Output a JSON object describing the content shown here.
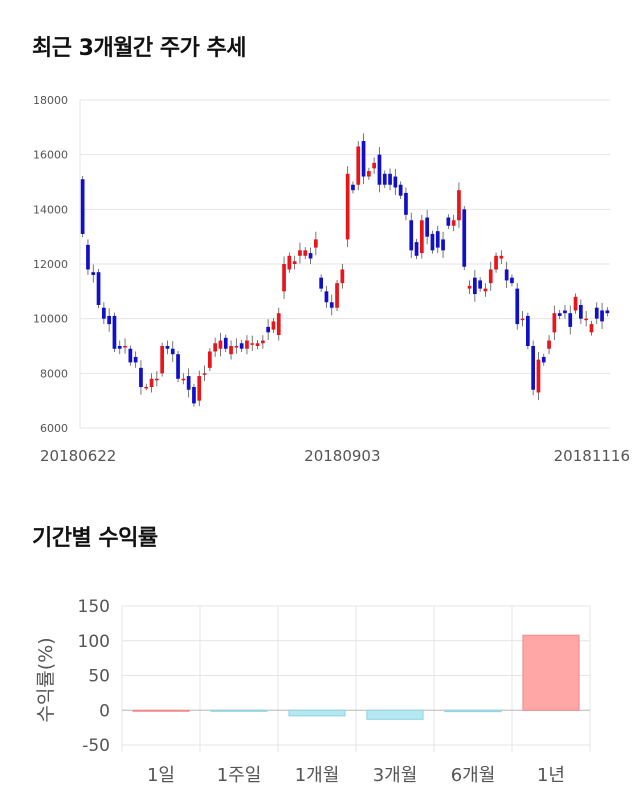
{
  "sections": {
    "price_title": "최근 3개월간 주가 추세",
    "returns_title": "기간별 수익률"
  },
  "chart_data": [
    {
      "type": "candlestick",
      "title": "최근 3개월간 주가 추세",
      "ylim": [
        6000,
        18000
      ],
      "y_ticks": [
        "18000",
        "16000",
        "14000",
        "12000",
        "10000",
        "8000",
        "6000"
      ],
      "x_tick_labels": [
        "20180622",
        "20180903",
        "20181116"
      ],
      "grid": true,
      "colors": {
        "up": "#e8151b",
        "down": "#1010c8",
        "wick": "#555555"
      },
      "candles": [
        [
          15100,
          13100
        ],
        [
          12700,
          11800
        ],
        [
          11700,
          11600
        ],
        [
          11700,
          10500
        ],
        [
          10400,
          10000
        ],
        [
          10100,
          9800
        ],
        [
          10100,
          8900
        ],
        [
          9000,
          8900
        ],
        [
          9000,
          9000
        ],
        [
          8900,
          8400
        ],
        [
          8600,
          8400
        ],
        [
          8200,
          7500
        ],
        [
          7500,
          7500
        ],
        [
          7500,
          7800
        ],
        [
          7800,
          7800
        ],
        [
          8000,
          9000
        ],
        [
          9000,
          8900
        ],
        [
          8900,
          8700
        ],
        [
          8700,
          7800
        ],
        [
          7800,
          7800
        ],
        [
          7900,
          7400
        ],
        [
          7500,
          6900
        ],
        [
          7000,
          7900
        ],
        [
          8000,
          8000
        ],
        [
          8200,
          8800
        ],
        [
          8800,
          9100
        ],
        [
          8900,
          9200
        ],
        [
          9300,
          8900
        ],
        [
          8700,
          9000
        ],
        [
          9000,
          9000
        ],
        [
          9100,
          8900
        ],
        [
          8900,
          9200
        ],
        [
          9100,
          9100
        ],
        [
          9000,
          9100
        ],
        [
          9100,
          9200
        ],
        [
          9700,
          9500
        ],
        [
          9600,
          9900
        ],
        [
          9400,
          10200
        ],
        [
          11000,
          12000
        ],
        [
          11800,
          12300
        ],
        [
          12000,
          12100
        ],
        [
          12300,
          12500
        ],
        [
          12300,
          12500
        ],
        [
          12400,
          12200
        ],
        [
          12600,
          12900
        ],
        [
          11500,
          11100
        ],
        [
          11000,
          10600
        ],
        [
          10600,
          10400
        ],
        [
          10400,
          11300
        ],
        [
          11300,
          11800
        ],
        [
          12900,
          15300
        ],
        [
          14900,
          14700
        ],
        [
          14900,
          16300
        ],
        [
          16500,
          15200
        ],
        [
          15200,
          15400
        ],
        [
          15500,
          15700
        ],
        [
          16000,
          14900
        ],
        [
          15300,
          14900
        ],
        [
          15300,
          14900
        ],
        [
          15200,
          14800
        ],
        [
          14900,
          14500
        ],
        [
          14600,
          13800
        ],
        [
          13600,
          12500
        ],
        [
          12800,
          12300
        ],
        [
          12400,
          13600
        ],
        [
          13700,
          13000
        ],
        [
          13100,
          12500
        ],
        [
          13200,
          12600
        ],
        [
          12900,
          12500
        ],
        [
          13700,
          13400
        ],
        [
          13400,
          13600
        ],
        [
          13600,
          14700
        ],
        [
          14000,
          11900
        ],
        [
          11100,
          11200
        ],
        [
          11500,
          10900
        ],
        [
          11400,
          11100
        ],
        [
          11000,
          11100
        ],
        [
          11300,
          11800
        ],
        [
          11800,
          12300
        ],
        [
          12200,
          12300
        ],
        [
          11800,
          11400
        ],
        [
          11500,
          11300
        ],
        [
          11100,
          9800
        ],
        [
          10000,
          10000
        ],
        [
          10100,
          9000
        ],
        [
          9000,
          7400
        ],
        [
          7300,
          8500
        ],
        [
          8600,
          8400
        ],
        [
          8900,
          9200
        ],
        [
          9500,
          10200
        ],
        [
          10200,
          10100
        ],
        [
          10300,
          10200
        ],
        [
          10200,
          9700
        ],
        [
          10300,
          10800
        ],
        [
          10500,
          10000
        ],
        [
          10000,
          10000
        ],
        [
          9500,
          9800
        ],
        [
          10400,
          10000
        ],
        [
          10300,
          9900
        ],
        [
          10300,
          10200
        ]
      ]
    },
    {
      "type": "bar",
      "categories": [
        "1일",
        "1주일",
        "1개월",
        "3개월",
        "6개월",
        "1년"
      ],
      "values": [
        0,
        -0.5,
        -8,
        -13,
        -2,
        108
      ],
      "ylabel": "수익률(%)",
      "ylim": [
        -60,
        150
      ],
      "y_ticks": [
        "150",
        "100",
        "50",
        "0",
        "-50"
      ],
      "grid": true,
      "colors": {
        "positive": "#ffa6a6",
        "negative": "#b4e8f2"
      }
    }
  ]
}
